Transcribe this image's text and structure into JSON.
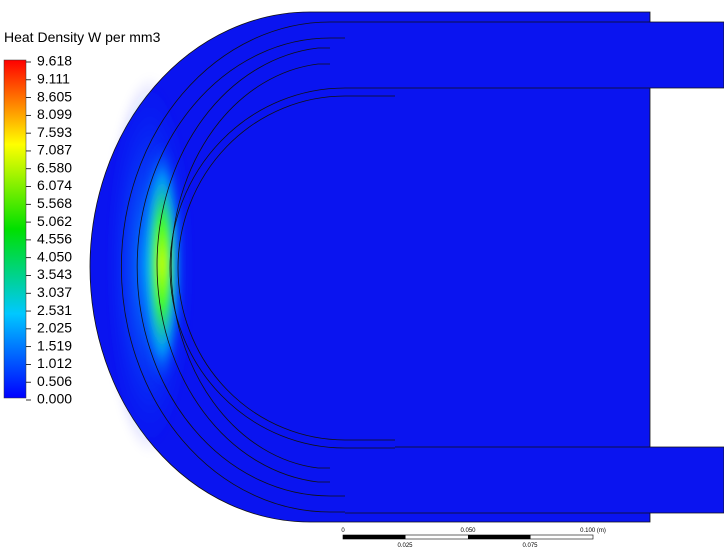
{
  "legend": {
    "title": "Heat Density W per mm3",
    "ticks": [
      "9.618",
      "9.111",
      "8.605",
      "8.099",
      "7.593",
      "7.087",
      "6.580",
      "6.074",
      "5.568",
      "5.062",
      "4.556",
      "4.050",
      "3.543",
      "3.037",
      "2.531",
      "2.025",
      "1.519",
      "1.012",
      "0.506",
      "0.000"
    ]
  },
  "scale_bar": {
    "top_labels": [
      "0",
      "0.050",
      "0.100 (m)"
    ],
    "bottom_labels": [
      "0.025",
      "0.075"
    ]
  }
}
